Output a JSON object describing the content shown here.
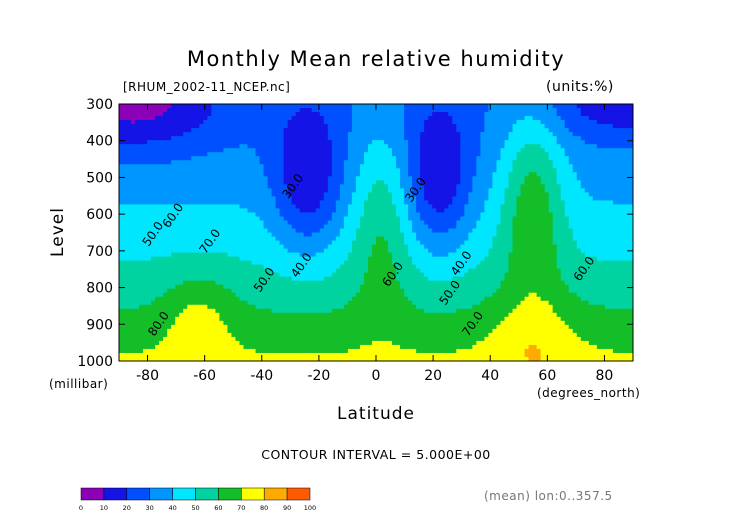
{
  "chart_data": {
    "type": "heatmap",
    "title": "Monthly Mean relative humidity",
    "file_label": "[RHUM_2002-11_NCEP.nc]",
    "units_label": "(units:%)",
    "xlabel": "Latitude",
    "x_unit": "(degrees_north)",
    "ylabel": "Level",
    "y_unit": "(millibar)",
    "xlim": [
      -90,
      90
    ],
    "ylim": [
      1000,
      300
    ],
    "x_ticks": [
      -80,
      -60,
      -40,
      -20,
      0,
      20,
      40,
      60,
      80
    ],
    "y_ticks": [
      300,
      400,
      500,
      600,
      700,
      800,
      900,
      1000
    ],
    "contour_interval_text": "CONTOUR INTERVAL = 5.000E+00",
    "footer_text": "(mean) lon:0..357.5",
    "contour_labels": [
      {
        "text": "30.0",
        "x": -28,
        "y": 530
      },
      {
        "text": "30.0",
        "x": 15,
        "y": 540
      },
      {
        "text": "40.0",
        "x": -25,
        "y": 745
      },
      {
        "text": "40.0",
        "x": 31,
        "y": 740
      },
      {
        "text": "50.0",
        "x": -38,
        "y": 785
      },
      {
        "text": "50.0",
        "x": 27,
        "y": 820
      },
      {
        "text": "50.0",
        "x": -77,
        "y": 660
      },
      {
        "text": "60.0",
        "x": -70,
        "y": 610
      },
      {
        "text": "60.0",
        "x": 7,
        "y": 770
      },
      {
        "text": "60.0",
        "x": 74,
        "y": 755
      },
      {
        "text": "70.0",
        "x": -57,
        "y": 680
      },
      {
        "text": "70.0",
        "x": 35,
        "y": 905
      },
      {
        "text": "80.0",
        "x": -75,
        "y": 905
      }
    ],
    "colorbar": {
      "levels": [
        0,
        10,
        20,
        30,
        40,
        50,
        60,
        70,
        80,
        90,
        100
      ],
      "colors": [
        "#8c00b8",
        "#1414e6",
        "#0050ff",
        "#0096ff",
        "#00e6ff",
        "#00d2a0",
        "#14be28",
        "#ffff00",
        "#ffaa00",
        "#ff5a00",
        "#ff0000"
      ]
    }
  }
}
